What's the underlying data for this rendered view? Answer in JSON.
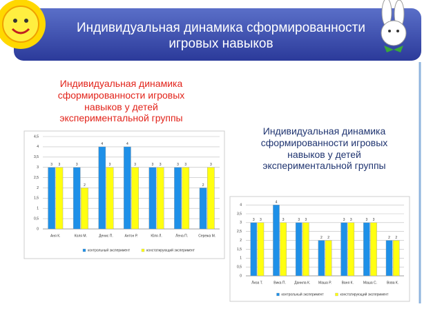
{
  "slide_title": "Индивидуальная динамика сформированности игровых навыков",
  "chart_data": [
    {
      "type": "bar",
      "title": "Индивидуальная динамика сформированности игровых навыков у детей экспериментальной группы",
      "title_color": "#e2231a",
      "categories": [
        "Аня К.",
        "Коля М.",
        "Денис П.",
        "Антон Р.",
        "Юля Л.",
        "Лена П.",
        "Сережа М."
      ],
      "series": [
        {
          "name": "контрольный эксперимент",
          "color": "#1e90e8",
          "values": [
            3,
            3,
            4,
            4,
            3,
            3,
            2
          ]
        },
        {
          "name": "констатирующий эксперимент",
          "color": "#ffff10",
          "values": [
            3,
            2,
            3,
            3,
            3,
            3,
            3
          ]
        }
      ],
      "ylim": [
        0,
        4.5
      ],
      "yticks": [
        0,
        {
          "value": 0.5,
          "label": "0,5"
        },
        1,
        {
          "value": 1.5,
          "label": "1,5"
        },
        2,
        {
          "value": 2.5,
          "label": "2,5"
        },
        3,
        {
          "value": 3.5,
          "label": "3,5"
        },
        4,
        {
          "value": 4.5,
          "label": "4,5"
        }
      ],
      "grid": true
    },
    {
      "type": "bar",
      "title": "Индивидуальная динамика сформированности игровых навыков у детей экспериментальной группы",
      "title_color": "#1f3470",
      "categories": [
        "Лиза Т.",
        "Вика П.",
        "Данила К.",
        "Маша Р.",
        "Ваня К.",
        "Маша С.",
        "Вова К."
      ],
      "series": [
        {
          "name": "контрольный эксперимент",
          "color": "#1e90e8",
          "values": [
            3,
            4,
            3,
            2,
            3,
            3,
            2
          ]
        },
        {
          "name": "констатирующий эксперимент",
          "color": "#ffff10",
          "values": [
            3,
            3,
            3,
            2,
            3,
            3,
            2
          ]
        }
      ],
      "ylim": [
        0,
        4.2
      ],
      "yticks": [
        0,
        {
          "value": 0.5,
          "label": "0,5"
        },
        1,
        {
          "value": 1.5,
          "label": "1,5"
        },
        2,
        {
          "value": 2.5,
          "label": "2,5"
        },
        3,
        {
          "value": 3.5,
          "label": "3,5"
        },
        4
      ],
      "grid": true
    }
  ]
}
